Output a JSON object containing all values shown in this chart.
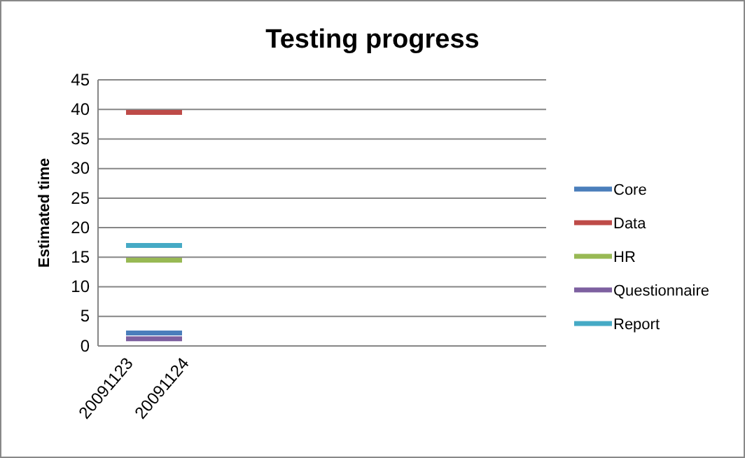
{
  "chart_data": {
    "type": "line",
    "title": "Testing progress",
    "ylabel": "Estimated time",
    "categories": [
      "20091123",
      "20091124",
      null,
      null,
      null,
      null,
      null,
      null
    ],
    "series": [
      {
        "name": "Core",
        "color": "#4a7ebb",
        "values": [
          2.2,
          2.2,
          null,
          null,
          null,
          null,
          null,
          null
        ]
      },
      {
        "name": "Data",
        "color": "#be4b48",
        "values": [
          39.5,
          39.5,
          null,
          null,
          null,
          null,
          null,
          null
        ]
      },
      {
        "name": "HR",
        "color": "#98b954",
        "values": [
          14.5,
          14.5,
          null,
          null,
          null,
          null,
          null,
          null
        ]
      },
      {
        "name": "Questionnaire",
        "color": "#7d60a0",
        "values": [
          1.2,
          1.2,
          null,
          null,
          null,
          null,
          null,
          null
        ]
      },
      {
        "name": "Report",
        "color": "#46aac5",
        "values": [
          17,
          17,
          null,
          null,
          null,
          null,
          null,
          null
        ]
      }
    ],
    "ylim": [
      0,
      45
    ],
    "yticks": [
      0,
      5,
      10,
      15,
      20,
      25,
      30,
      35,
      40,
      45
    ],
    "grid": "y",
    "legend": "right",
    "marker": "none",
    "line_style": "solid"
  }
}
